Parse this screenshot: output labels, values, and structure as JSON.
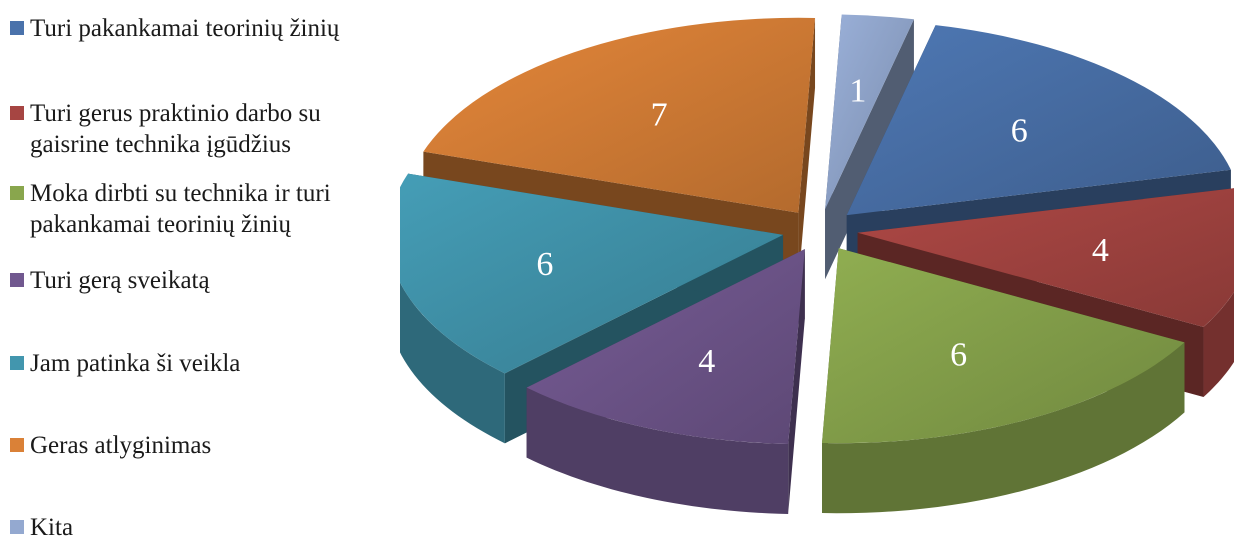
{
  "chart_data": {
    "type": "pie",
    "three_d": true,
    "exploded": true,
    "legend_position": "left",
    "categories": [
      "Turi pakankamai teorinių žinių",
      "Turi gerus praktinio darbo su gaisrine technika įgūdžius",
      "Moka dirbti su technika ir turi pakankamai teorinių žinių",
      "Turi gerą sveikatą",
      "Jam patinka ši veikla",
      "Geras atlyginimas",
      "Kita"
    ],
    "legend_lines": [
      [
        "Turi pakankamai teorinių žinių"
      ],
      [
        "Turi gerus praktinio darbo su",
        "gaisrine technika įgūdžius"
      ],
      [
        "Moka dirbti su technika ir turi",
        "pakankamai teorinių žinių"
      ],
      [
        "Turi gerą sveikatą"
      ],
      [
        "Jam patinka ši veikla"
      ],
      [
        "Geras atlyginimas"
      ],
      [
        "Kita"
      ]
    ],
    "values": [
      6,
      4,
      6,
      4,
      6,
      7,
      1
    ],
    "data_labels": [
      "6",
      "4",
      "6",
      "4",
      "6",
      "7",
      "1"
    ],
    "colors": [
      "#4A72AB",
      "#A64542",
      "#89A64D",
      "#71588F",
      "#4296AE",
      "#DA8137",
      "#94A9D0"
    ]
  }
}
